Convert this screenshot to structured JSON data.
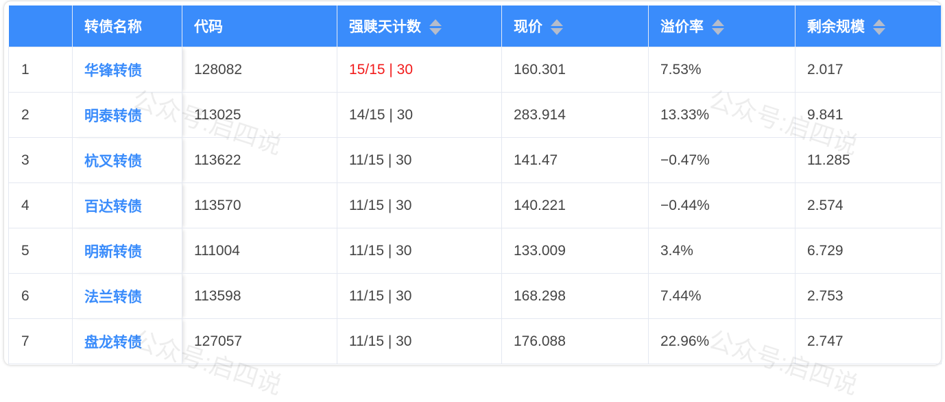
{
  "watermark": "公众号:启四说",
  "columns": [
    {
      "label": "",
      "sortable": false
    },
    {
      "label": "转债名称",
      "sortable": false
    },
    {
      "label": "代码",
      "sortable": false
    },
    {
      "label": "强赎天计数",
      "sortable": true
    },
    {
      "label": "现价",
      "sortable": true
    },
    {
      "label": "溢价率",
      "sortable": true
    },
    {
      "label": "剩余规模",
      "sortable": true
    }
  ],
  "rows": [
    {
      "index": "1",
      "name": "华锋转债",
      "code": "128082",
      "redeem_count": "15/15 | 30",
      "redeem_highlight": true,
      "price": "160.301",
      "premium": "7.53%",
      "remaining": "2.017"
    },
    {
      "index": "2",
      "name": "明泰转债",
      "code": "113025",
      "redeem_count": "14/15 | 30",
      "redeem_highlight": false,
      "price": "283.914",
      "premium": "13.33%",
      "remaining": "9.841"
    },
    {
      "index": "3",
      "name": "杭叉转债",
      "code": "113622",
      "redeem_count": "11/15 | 30",
      "redeem_highlight": false,
      "price": "141.47",
      "premium": "−0.47%",
      "remaining": "11.285"
    },
    {
      "index": "4",
      "name": "百达转债",
      "code": "113570",
      "redeem_count": "11/15 | 30",
      "redeem_highlight": false,
      "price": "140.221",
      "premium": "−0.44%",
      "remaining": "2.574"
    },
    {
      "index": "5",
      "name": "明新转债",
      "code": "111004",
      "redeem_count": "11/15 | 30",
      "redeem_highlight": false,
      "price": "133.009",
      "premium": "3.4%",
      "remaining": "6.729"
    },
    {
      "index": "6",
      "name": "法兰转债",
      "code": "113598",
      "redeem_count": "11/15 | 30",
      "redeem_highlight": false,
      "price": "168.298",
      "premium": "7.44%",
      "remaining": "2.753"
    },
    {
      "index": "7",
      "name": "盘龙转债",
      "code": "127057",
      "redeem_count": "11/15 | 30",
      "redeem_highlight": false,
      "price": "176.088",
      "premium": "22.96%",
      "remaining": "2.747"
    }
  ],
  "colors": {
    "header_bg": "#3a8cfb",
    "link": "#3a8cfb",
    "highlight": "#f21b1b"
  }
}
